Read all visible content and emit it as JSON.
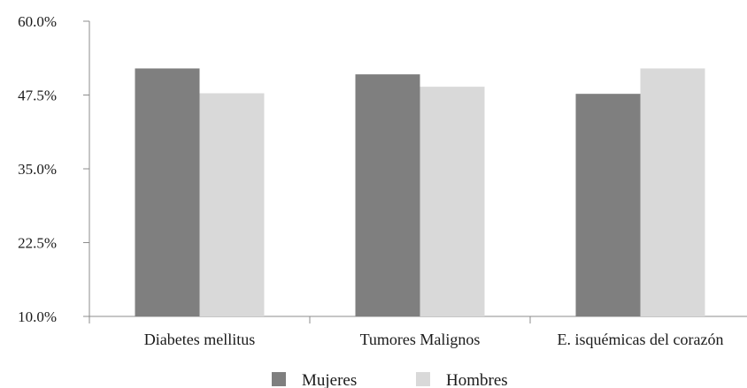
{
  "chart_data": {
    "type": "bar",
    "title": "",
    "xlabel": "",
    "ylabel": "",
    "categories": [
      "Diabetes mellitus",
      "Tumores Malignos",
      "E. isquémicas del corazón"
    ],
    "series": [
      {
        "name": "Mujeres",
        "values": [
          52.0,
          51.0,
          47.7
        ],
        "color": "#7f7f7f"
      },
      {
        "name": "Hombres",
        "values": [
          47.8,
          48.9,
          52.0
        ],
        "color": "#d9d9d9"
      }
    ],
    "ylim": [
      10,
      60
    ],
    "yticks": [
      10,
      22.5,
      35,
      47.5,
      60
    ],
    "ytick_labels": [
      "10.0%",
      "22.5%",
      "35.0%",
      "47.5%",
      "60.0%"
    ],
    "grid": false,
    "legend_position": "bottom",
    "colors": {
      "axis": "#8c8c8c",
      "text": "#1a1a1a"
    }
  }
}
